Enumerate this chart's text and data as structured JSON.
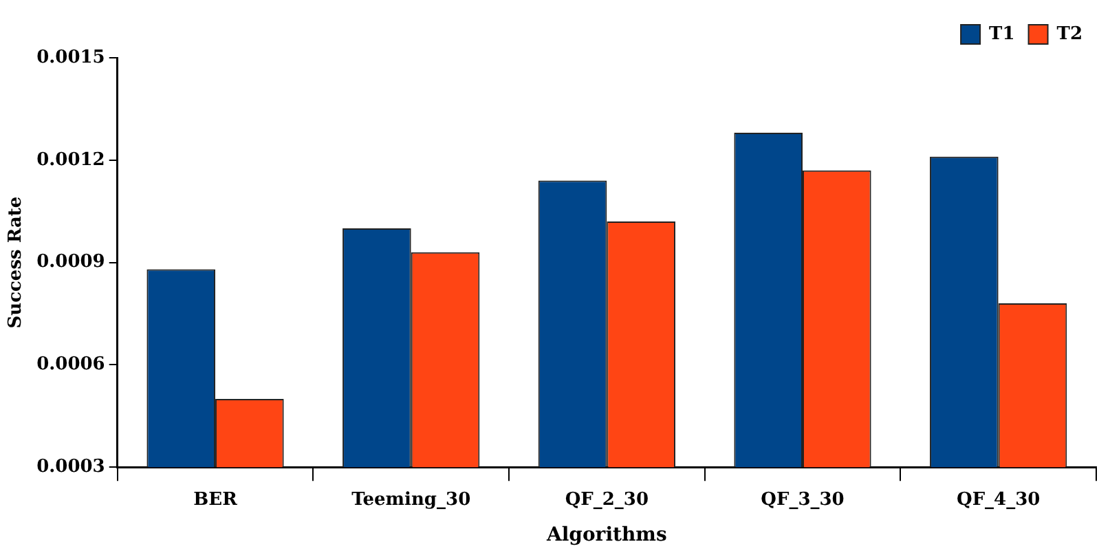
{
  "chart_data": {
    "type": "bar",
    "xlabel": "Algorithms",
    "ylabel": "Success Rate",
    "categories": [
      "BER",
      "Teeming_30",
      "QF_2_30",
      "QF_3_30",
      "QF_4_30"
    ],
    "series": [
      {
        "name": "T1",
        "color": "#00468b",
        "values": [
          0.00088,
          0.001,
          0.00114,
          0.00128,
          0.00121
        ]
      },
      {
        "name": "T2",
        "color": "#ff4514",
        "values": [
          0.0005,
          0.00093,
          0.00102,
          0.00117,
          0.00078
        ]
      }
    ],
    "ylim": [
      0.0003,
      0.0015
    ],
    "yticks": [
      0.0003,
      0.0006,
      0.0009,
      0.0012,
      0.0015
    ],
    "grid": false,
    "legend": "top right"
  }
}
